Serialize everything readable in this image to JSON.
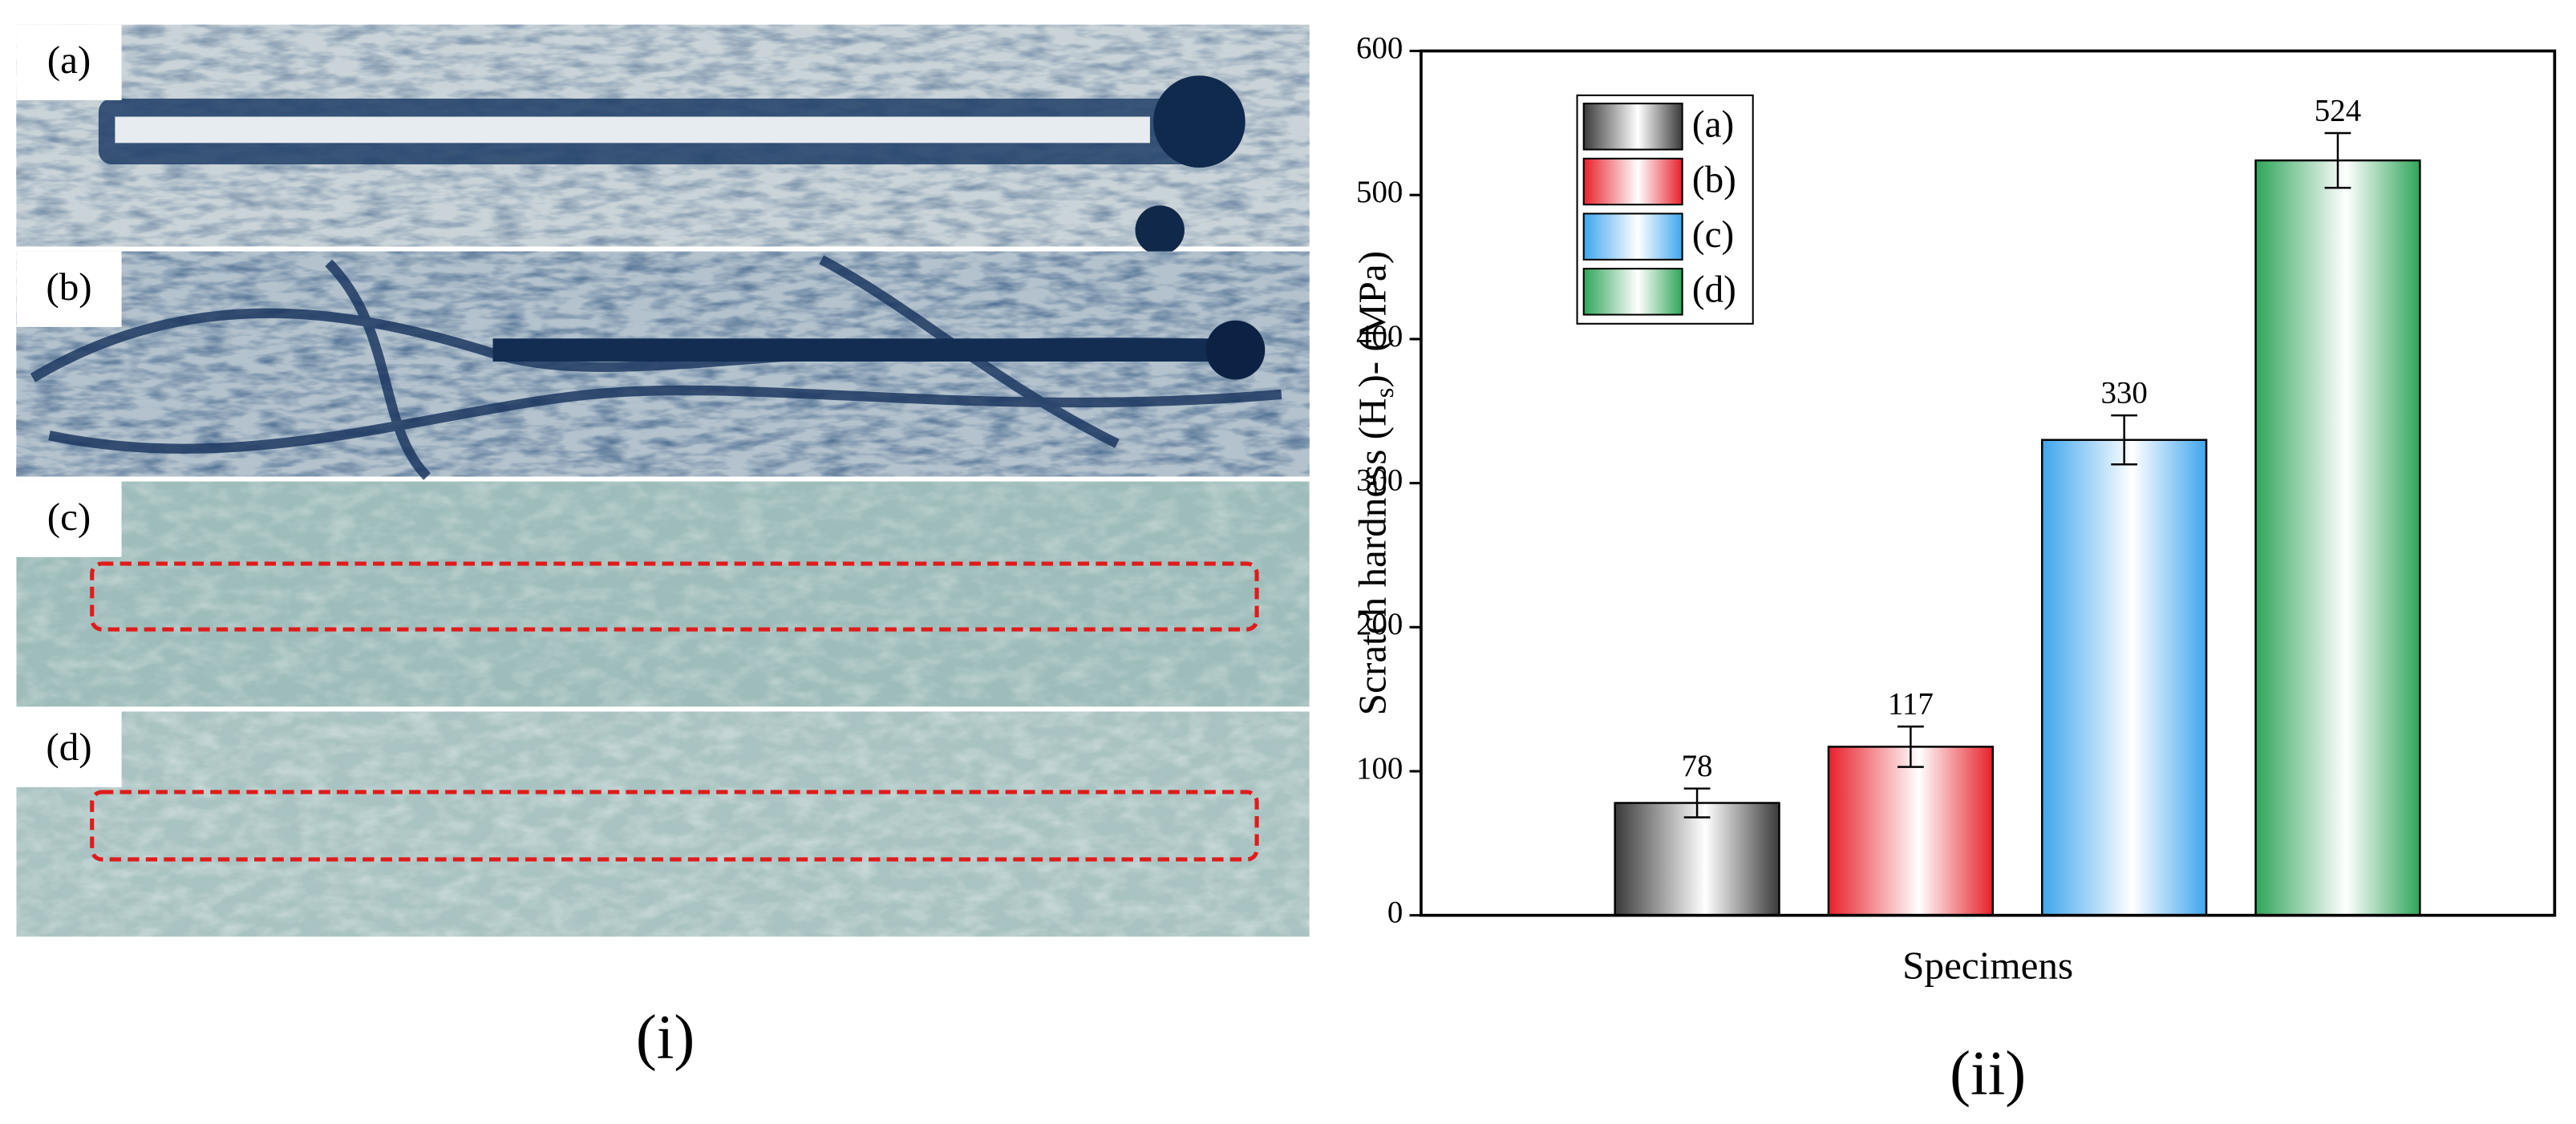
{
  "panel_i": {
    "labels": [
      "(a)",
      "(b)",
      "(c)",
      "(d)"
    ],
    "caption": "(i)"
  },
  "chart_data": {
    "type": "bar",
    "categories": [
      "(a)",
      "(b)",
      "(c)",
      "(d)"
    ],
    "values": [
      78,
      117,
      330,
      524
    ],
    "errors": [
      10,
      14,
      17,
      19
    ],
    "colors": [
      "#3a3a3a",
      "#e8202a",
      "#3ea6ee",
      "#2fa55a"
    ],
    "ylabel": [
      "Scratch hardness (H",
      "s",
      ")- (MPa)"
    ],
    "xlabel": "Specimens",
    "ylim": [
      0,
      600
    ],
    "yticks": [
      0,
      100,
      200,
      300,
      400,
      500,
      600
    ],
    "legend": "upper left",
    "grid": false
  },
  "caption_ii": "(ii)"
}
